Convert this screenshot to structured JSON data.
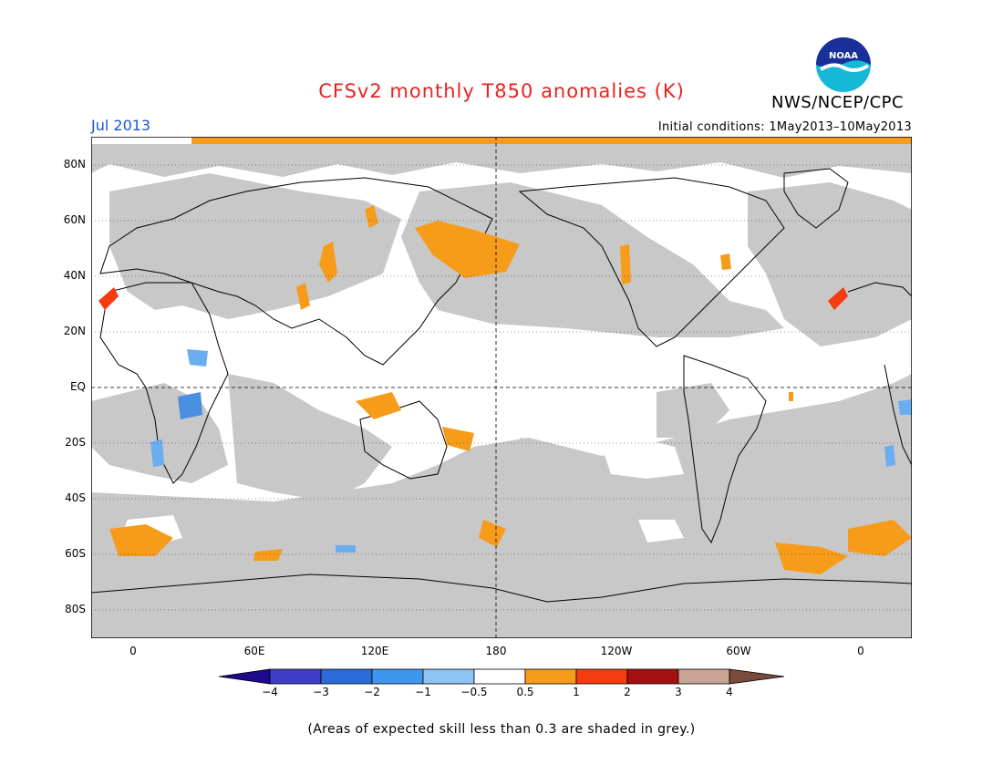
{
  "title": "CFSv2 monthly T850 anomalies (K)",
  "agency": "NWS/NCEP/CPC",
  "logo_text": "NOAA",
  "valid_month": "Jul 2013",
  "initial_conditions": "Initial conditions: 1May2013–10May2013",
  "footnote": "(Areas of expected skill less than 0.3 are shaded in grey.)",
  "map": {
    "projection": "cylindrical equidistant, centered on 180",
    "lon_range": [
      -20,
      380
    ],
    "lat_range": [
      -90,
      90
    ],
    "lat_labels": [
      "80N",
      "60N",
      "40N",
      "20N",
      "EQ",
      "20S",
      "40S",
      "60S",
      "80S"
    ],
    "lon_labels": [
      "0",
      "60E",
      "120E",
      "180",
      "120W",
      "60W",
      "0"
    ],
    "grey_meaning": "expected skill < 0.3",
    "colors": {
      "grey": "#c8c8c8",
      "land_outline": "#000000",
      "warm_05_1": "#f79b1a",
      "warm_1_2": "#f43c10",
      "cool_05_1": "#6aaef0",
      "cool_1_2": "#4a8ee0"
    }
  },
  "colorbar": {
    "labels": [
      "−4",
      "−3",
      "−2",
      "−1",
      "−0.5",
      "0.5",
      "1",
      "2",
      "3",
      "4"
    ],
    "colors": [
      "#1d0a8c",
      "#3d3ec8",
      "#2a6bd8",
      "#3f96ee",
      "#8cc4f4",
      "#ffffff",
      "#f79b1a",
      "#f43c10",
      "#a41010",
      "#c9a393",
      "#7a4a3a"
    ]
  }
}
